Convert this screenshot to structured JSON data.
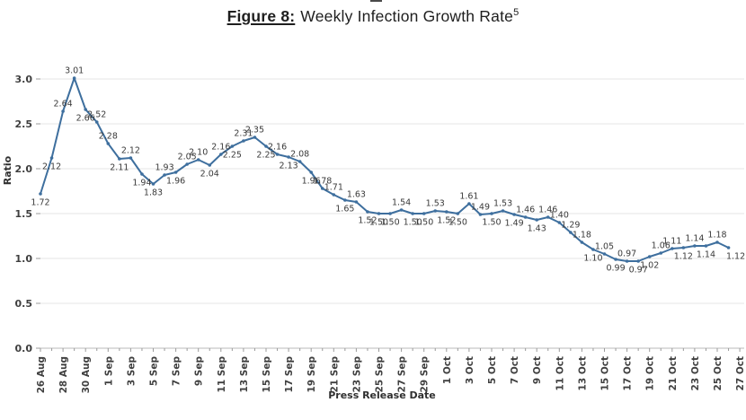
{
  "title": {
    "label": "Figure 8:",
    "text": "Weekly Infection Growth Rate",
    "superscript": "5"
  },
  "chart_data": {
    "type": "line",
    "title": "Figure 8: Weekly Infection Growth Rate",
    "xlabel": "Press Release Date",
    "ylabel": "Ratio",
    "grid": true,
    "legend": "none",
    "line_color": "#3e6f9e",
    "data_label_color": "#3a3a3a",
    "tick_label_color": "#3f3f3f",
    "ylim": [
      0.0,
      3.2
    ],
    "yticks": [
      "0.0",
      "0.5",
      "1.0",
      "1.5",
      "2.0",
      "2.5",
      "3.0"
    ],
    "xtick_labels": [
      "26 Aug",
      "28 Aug",
      "30 Aug",
      "1 Sep",
      "3 Sep",
      "5 Sep",
      "7 Sep",
      "9 Sep",
      "11 Sep",
      "13 Sep",
      "15 Sep",
      "17 Sep",
      "19 Sep",
      "21 Sep",
      "23 Sep",
      "25 Sep",
      "27 Sep",
      "29 Sep",
      "1 Oct",
      "3 Oct",
      "5 Oct",
      "7 Oct",
      "9 Oct",
      "11 Oct",
      "13 Oct",
      "15 Oct",
      "17 Oct",
      "19 Oct",
      "21 Oct",
      "23 Oct",
      "25 Oct",
      "27 Oct"
    ],
    "x": [
      "26 Aug",
      "27 Aug",
      "28 Aug",
      "29 Aug",
      "30 Aug",
      "31 Aug",
      "1 Sep",
      "2 Sep",
      "3 Sep",
      "4 Sep",
      "5 Sep",
      "6 Sep",
      "7 Sep",
      "8 Sep",
      "9 Sep",
      "10 Sep",
      "11 Sep",
      "12 Sep",
      "13 Sep",
      "14 Sep",
      "15 Sep",
      "16 Sep",
      "17 Sep",
      "18 Sep",
      "19 Sep",
      "20 Sep",
      "21 Sep",
      "22 Sep",
      "23 Sep",
      "24 Sep",
      "25 Sep",
      "26 Sep",
      "27 Sep",
      "28 Sep",
      "29 Sep",
      "30 Sep",
      "1 Oct",
      "2 Oct",
      "3 Oct",
      "4 Oct",
      "5 Oct",
      "6 Oct",
      "7 Oct",
      "8 Oct",
      "9 Oct",
      "10 Oct",
      "11 Oct",
      "12 Oct",
      "13 Oct",
      "14 Oct",
      "15 Oct",
      "16 Oct",
      "17 Oct",
      "18 Oct",
      "19 Oct",
      "20 Oct",
      "21 Oct",
      "22 Oct",
      "23 Oct",
      "24 Oct",
      "25 Oct",
      "26 Oct"
    ],
    "values": [
      1.72,
      2.12,
      2.64,
      3.01,
      2.66,
      2.52,
      2.28,
      2.11,
      2.12,
      1.94,
      1.83,
      1.93,
      1.96,
      2.05,
      2.1,
      2.04,
      2.16,
      2.25,
      2.31,
      2.35,
      2.25,
      2.16,
      2.13,
      2.08,
      1.96,
      1.78,
      1.71,
      1.65,
      1.63,
      1.52,
      1.5,
      1.5,
      1.54,
      1.5,
      1.5,
      1.53,
      1.52,
      1.5,
      1.61,
      1.49,
      1.5,
      1.53,
      1.49,
      1.46,
      1.43,
      1.46,
      1.4,
      1.29,
      1.18,
      1.1,
      1.05,
      0.99,
      0.97,
      0.97,
      1.02,
      1.06,
      1.11,
      1.12,
      1.14,
      1.14,
      1.18,
      1.12
    ],
    "label_sides": [
      "b",
      "b",
      "a",
      "a",
      "b",
      "a",
      "a",
      "b",
      "a",
      "b",
      "b",
      "a",
      "b",
      "a",
      "a",
      "b",
      "a",
      "b",
      "a",
      "a",
      "b",
      "a",
      "b",
      "a",
      "b",
      "a",
      "a",
      "b",
      "a",
      "b",
      "b",
      "b",
      "a",
      "b",
      "b",
      "a",
      "b",
      "b",
      "a",
      "a",
      "b",
      "a",
      "b",
      "a",
      "b",
      "a",
      "a",
      "a",
      "a",
      "b",
      "a",
      "b",
      "a",
      "b",
      "b",
      "a",
      "a",
      "b",
      "a",
      "b",
      "a",
      "b"
    ],
    "last_label_clipped": true
  }
}
